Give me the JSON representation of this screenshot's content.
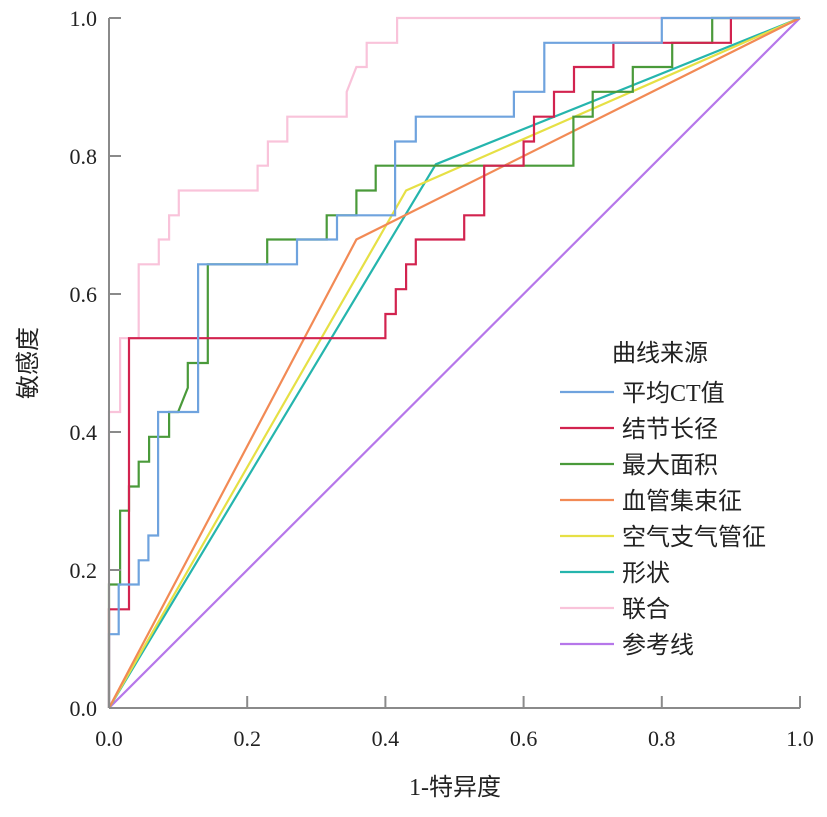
{
  "chart_data": {
    "type": "line",
    "title": "",
    "xlabel": "1-特异度",
    "ylabel": "敏感度",
    "xlim": [
      0,
      1
    ],
    "ylim": [
      0,
      1
    ],
    "xticks": [
      "0.0",
      "0.2",
      "0.4",
      "0.6",
      "0.8",
      "1.0"
    ],
    "yticks": [
      "0.0",
      "0.2",
      "0.4",
      "0.6",
      "0.8",
      "1.0"
    ],
    "grid": false,
    "legend": {
      "title": "曲线来源",
      "placement": "right"
    },
    "series": [
      {
        "name": "平均CT值",
        "color": "#6fa3de",
        "points": [
          [
            0,
            0
          ],
          [
            0,
            0.107
          ],
          [
            0.014,
            0.107
          ],
          [
            0.014,
            0.179
          ],
          [
            0.043,
            0.179
          ],
          [
            0.043,
            0.214
          ],
          [
            0.057,
            0.214
          ],
          [
            0.057,
            0.25
          ],
          [
            0.071,
            0.25
          ],
          [
            0.071,
            0.429
          ],
          [
            0.129,
            0.429
          ],
          [
            0.129,
            0.643
          ],
          [
            0.272,
            0.643
          ],
          [
            0.272,
            0.679
          ],
          [
            0.33,
            0.679
          ],
          [
            0.33,
            0.714
          ],
          [
            0.414,
            0.714
          ],
          [
            0.414,
            0.821
          ],
          [
            0.444,
            0.821
          ],
          [
            0.444,
            0.857
          ],
          [
            0.586,
            0.857
          ],
          [
            0.586,
            0.893
          ],
          [
            0.63,
            0.893
          ],
          [
            0.63,
            0.964
          ],
          [
            0.8,
            0.964
          ],
          [
            0.8,
            1
          ],
          [
            1,
            1
          ]
        ]
      },
      {
        "name": "结节长径",
        "color": "#d2234f",
        "points": [
          [
            0,
            0
          ],
          [
            0,
            0.143
          ],
          [
            0.029,
            0.143
          ],
          [
            0.029,
            0.536
          ],
          [
            0.4,
            0.536
          ],
          [
            0.4,
            0.571
          ],
          [
            0.415,
            0.571
          ],
          [
            0.415,
            0.607
          ],
          [
            0.43,
            0.607
          ],
          [
            0.43,
            0.643
          ],
          [
            0.444,
            0.643
          ],
          [
            0.444,
            0.679
          ],
          [
            0.514,
            0.679
          ],
          [
            0.514,
            0.714
          ],
          [
            0.543,
            0.714
          ],
          [
            0.543,
            0.786
          ],
          [
            0.6,
            0.786
          ],
          [
            0.6,
            0.821
          ],
          [
            0.615,
            0.821
          ],
          [
            0.615,
            0.857
          ],
          [
            0.644,
            0.857
          ],
          [
            0.644,
            0.893
          ],
          [
            0.673,
            0.893
          ],
          [
            0.673,
            0.929
          ],
          [
            0.73,
            0.929
          ],
          [
            0.73,
            0.964
          ],
          [
            0.9,
            0.964
          ],
          [
            0.9,
            1
          ],
          [
            1,
            1
          ]
        ]
      },
      {
        "name": "最大面积",
        "color": "#4a9a3a",
        "points": [
          [
            0,
            0
          ],
          [
            0,
            0.179
          ],
          [
            0.016,
            0.179
          ],
          [
            0.016,
            0.286
          ],
          [
            0.029,
            0.286
          ],
          [
            0.029,
            0.321
          ],
          [
            0.043,
            0.321
          ],
          [
            0.043,
            0.357
          ],
          [
            0.058,
            0.357
          ],
          [
            0.058,
            0.393
          ],
          [
            0.087,
            0.393
          ],
          [
            0.087,
            0.429
          ],
          [
            0.1,
            0.429
          ],
          [
            0.114,
            0.464
          ],
          [
            0.114,
            0.5
          ],
          [
            0.143,
            0.5
          ],
          [
            0.143,
            0.643
          ],
          [
            0.229,
            0.643
          ],
          [
            0.229,
            0.679
          ],
          [
            0.315,
            0.679
          ],
          [
            0.315,
            0.714
          ],
          [
            0.358,
            0.714
          ],
          [
            0.358,
            0.75
          ],
          [
            0.386,
            0.75
          ],
          [
            0.386,
            0.786
          ],
          [
            0.672,
            0.786
          ],
          [
            0.672,
            0.857
          ],
          [
            0.7,
            0.857
          ],
          [
            0.7,
            0.893
          ],
          [
            0.758,
            0.893
          ],
          [
            0.758,
            0.929
          ],
          [
            0.815,
            0.929
          ],
          [
            0.815,
            0.964
          ],
          [
            0.873,
            0.964
          ],
          [
            0.873,
            1
          ],
          [
            1,
            1
          ]
        ]
      },
      {
        "name": "血管集束征",
        "color": "#f28a55",
        "points": [
          [
            0,
            0
          ],
          [
            0.358,
            0.679
          ],
          [
            1,
            1
          ]
        ]
      },
      {
        "name": "空气支气管征",
        "color": "#e6e045",
        "points": [
          [
            0,
            0
          ],
          [
            0.43,
            0.75
          ],
          [
            1,
            1
          ]
        ]
      },
      {
        "name": "形状",
        "color": "#25b5ad",
        "points": [
          [
            0,
            0
          ],
          [
            0.473,
            0.788
          ],
          [
            1,
            1
          ]
        ]
      },
      {
        "name": "联合",
        "color": "#f9c3da",
        "points": [
          [
            0,
            0
          ],
          [
            0,
            0.429
          ],
          [
            0.016,
            0.429
          ],
          [
            0.016,
            0.536
          ],
          [
            0.043,
            0.536
          ],
          [
            0.043,
            0.643
          ],
          [
            0.072,
            0.643
          ],
          [
            0.072,
            0.679
          ],
          [
            0.087,
            0.679
          ],
          [
            0.087,
            0.714
          ],
          [
            0.101,
            0.714
          ],
          [
            0.101,
            0.75
          ],
          [
            0.215,
            0.75
          ],
          [
            0.215,
            0.786
          ],
          [
            0.23,
            0.786
          ],
          [
            0.23,
            0.821
          ],
          [
            0.258,
            0.821
          ],
          [
            0.258,
            0.857
          ],
          [
            0.344,
            0.857
          ],
          [
            0.344,
            0.893
          ],
          [
            0.358,
            0.929
          ],
          [
            0.373,
            0.929
          ],
          [
            0.373,
            0.964
          ],
          [
            0.417,
            0.964
          ],
          [
            0.417,
            1
          ],
          [
            1,
            1
          ]
        ]
      },
      {
        "name": "参考线",
        "color": "#b677ea",
        "points": [
          [
            0,
            0
          ],
          [
            1,
            1
          ]
        ]
      }
    ]
  }
}
